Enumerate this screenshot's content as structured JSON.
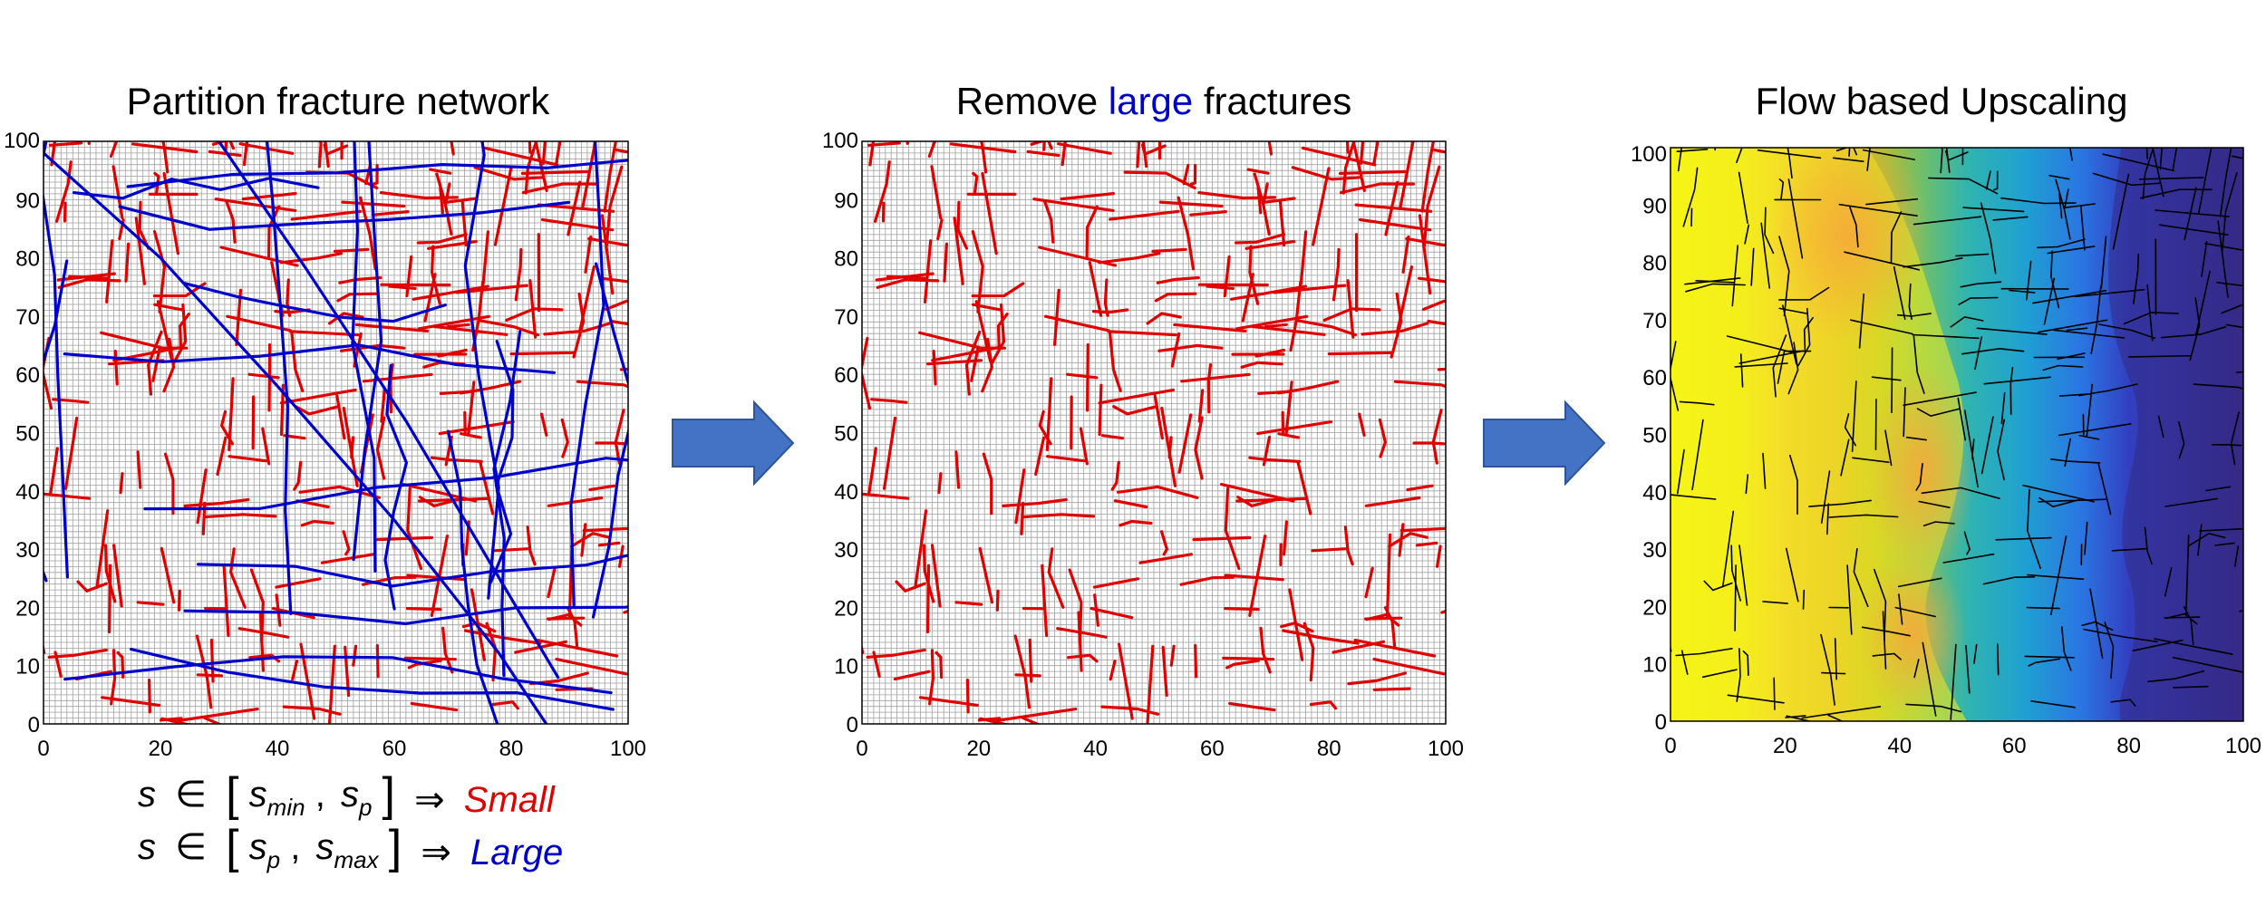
{
  "panels": [
    {
      "id": "partition",
      "title": "Partition fracture network",
      "x_ticks": [
        "0",
        "20",
        "40",
        "60",
        "80",
        "100"
      ],
      "y_ticks": [
        "0",
        "10",
        "20",
        "30",
        "40",
        "50",
        "60",
        "70",
        "80",
        "90",
        "100"
      ]
    },
    {
      "id": "remove",
      "title_pre": "Remove ",
      "title_em": "large",
      "title_post": " fractures",
      "x_ticks": [
        "0",
        "20",
        "40",
        "60",
        "80",
        "100"
      ],
      "y_ticks": [
        "0",
        "10",
        "20",
        "30",
        "40",
        "50",
        "60",
        "70",
        "80",
        "90",
        "100"
      ]
    },
    {
      "id": "upscale",
      "title": "Flow based Upscaling",
      "x_ticks": [
        "0",
        "20",
        "40",
        "60",
        "80",
        "100"
      ],
      "y_ticks": [
        "0",
        "10",
        "20",
        "30",
        "40",
        "50",
        "60",
        "70",
        "80",
        "90",
        "100"
      ]
    }
  ],
  "formula": {
    "line1": {
      "s": "s",
      "in": "∈",
      "lb": "[",
      "a": "s",
      "a_sub": "min",
      "comma": ",",
      "b": "s",
      "b_sub": "p",
      "rb": "]",
      "arrow": "⇒",
      "label": "Small"
    },
    "line2": {
      "s": "s",
      "in": "∈",
      "lb": "[",
      "a": "s",
      "a_sub": "p",
      "comma": ",",
      "b": "s",
      "b_sub": "max",
      "rb": "]",
      "arrow": "⇒",
      "label": "Large"
    }
  },
  "colors": {
    "small_fracture": "#e00000",
    "large_fracture": "#0000cc",
    "arrow_fill": "#4472c4",
    "arrow_stroke": "#2f5597",
    "grid_line": "#a0a0a0",
    "fracture_black": "#000000",
    "colormap": [
      "#f9fb0e",
      "#eee22a",
      "#f7b93b",
      "#b5be2c",
      "#33b7a0",
      "#1a9ed7",
      "#2966e4",
      "#352a87"
    ]
  },
  "icons": [
    "right-arrow-icon",
    "right-arrow-icon"
  ]
}
